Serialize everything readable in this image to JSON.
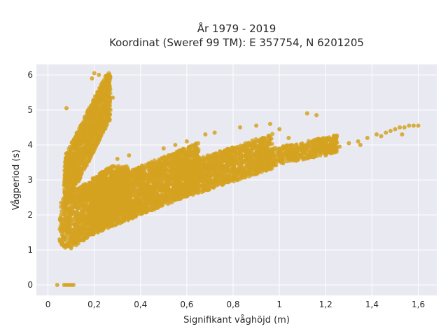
{
  "chart_data": {
    "type": "scatter",
    "title_line1": "År 1979 - 2019",
    "title_line2": "Koordinat (Sweref 99 TM): E 357754, N 6201205",
    "xlabel": "Signifikant våghöjd (m)",
    "ylabel": "Vågperiod (s)",
    "xlim": [
      -0.05,
      1.68
    ],
    "ylim": [
      -0.3,
      6.3
    ],
    "xticks": [
      0,
      0.2,
      0.4,
      0.6,
      0.8,
      1,
      1.2,
      1.4,
      1.6
    ],
    "xtick_labels": [
      "0",
      "0,2",
      "0,4",
      "0,6",
      "0,8",
      "1",
      "1,2",
      "1,4",
      "1,6"
    ],
    "yticks": [
      0,
      1,
      2,
      3,
      4,
      5,
      6
    ],
    "ytick_labels": [
      "0",
      "1",
      "2",
      "3",
      "4",
      "5",
      "6"
    ],
    "grid": true,
    "point_color": "#d4a221",
    "plot_background": "#e9e9f1",
    "clusters": [
      {
        "x": [
          0.07,
          0.23
        ],
        "y": [
          3.0,
          5.8
        ]
      },
      {
        "x": [
          0.05,
          0.3
        ],
        "y": [
          1.2,
          3.2
        ]
      },
      {
        "x": [
          0.2,
          0.6
        ],
        "y": [
          1.8,
          3.8
        ]
      },
      {
        "x": [
          0.45,
          0.95
        ],
        "y": [
          2.6,
          4.2
        ]
      },
      {
        "x": [
          0.9,
          1.25
        ],
        "y": [
          3.3,
          4.1
        ]
      }
    ],
    "points": [
      {
        "x": 0.04,
        "y": 0
      },
      {
        "x": 0.07,
        "y": 0
      },
      {
        "x": 0.08,
        "y": 0
      },
      {
        "x": 0.09,
        "y": 0
      },
      {
        "x": 0.1,
        "y": 0
      },
      {
        "x": 0.11,
        "y": 0
      },
      {
        "x": 0.05,
        "y": 1.3
      },
      {
        "x": 0.06,
        "y": 1.15
      },
      {
        "x": 0.08,
        "y": 1.1
      },
      {
        "x": 0.1,
        "y": 1.05
      },
      {
        "x": 0.12,
        "y": 1.2
      },
      {
        "x": 0.15,
        "y": 1.35
      },
      {
        "x": 0.2,
        "y": 6.05
      },
      {
        "x": 0.22,
        "y": 6.0
      },
      {
        "x": 0.19,
        "y": 5.9
      },
      {
        "x": 0.25,
        "y": 5.2
      },
      {
        "x": 0.08,
        "y": 5.05
      },
      {
        "x": 0.28,
        "y": 5.35
      },
      {
        "x": 1.12,
        "y": 4.9
      },
      {
        "x": 1.16,
        "y": 4.85
      },
      {
        "x": 0.9,
        "y": 4.55
      },
      {
        "x": 0.96,
        "y": 4.6
      },
      {
        "x": 1.0,
        "y": 4.45
      },
      {
        "x": 0.83,
        "y": 4.5
      },
      {
        "x": 0.72,
        "y": 4.35
      },
      {
        "x": 0.68,
        "y": 4.3
      },
      {
        "x": 1.04,
        "y": 4.2
      },
      {
        "x": 0.9,
        "y": 3.4
      },
      {
        "x": 0.95,
        "y": 3.35
      },
      {
        "x": 1.2,
        "y": 3.7
      },
      {
        "x": 1.26,
        "y": 3.95
      },
      {
        "x": 1.3,
        "y": 4.05
      },
      {
        "x": 1.34,
        "y": 4.1
      },
      {
        "x": 1.38,
        "y": 4.2
      },
      {
        "x": 1.42,
        "y": 4.3
      },
      {
        "x": 1.44,
        "y": 4.25
      },
      {
        "x": 1.46,
        "y": 4.35
      },
      {
        "x": 1.48,
        "y": 4.4
      },
      {
        "x": 1.5,
        "y": 4.45
      },
      {
        "x": 1.52,
        "y": 4.5
      },
      {
        "x": 1.54,
        "y": 4.5
      },
      {
        "x": 1.56,
        "y": 4.55
      },
      {
        "x": 1.58,
        "y": 4.55
      },
      {
        "x": 1.6,
        "y": 4.55
      },
      {
        "x": 1.53,
        "y": 4.3
      },
      {
        "x": 1.35,
        "y": 4.0
      },
      {
        "x": 1.22,
        "y": 3.95
      },
      {
        "x": 1.15,
        "y": 3.85
      },
      {
        "x": 1.1,
        "y": 3.8
      },
      {
        "x": 0.5,
        "y": 3.9
      },
      {
        "x": 0.6,
        "y": 4.1
      },
      {
        "x": 0.55,
        "y": 4.0
      },
      {
        "x": 0.3,
        "y": 3.6
      },
      {
        "x": 0.35,
        "y": 3.7
      }
    ]
  }
}
